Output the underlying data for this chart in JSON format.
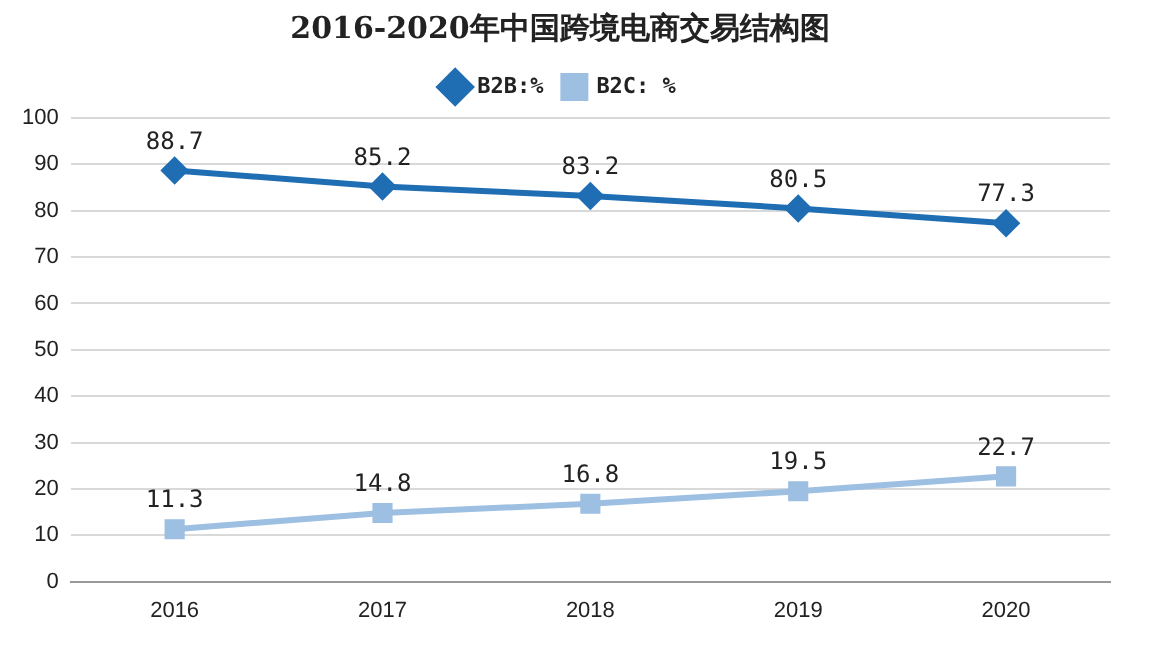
{
  "chart_data": {
    "type": "line",
    "title": "2016-2020年中国跨境电商交易结构图",
    "categories": [
      "2016",
      "2017",
      "2018",
      "2019",
      "2020"
    ],
    "series": [
      {
        "name": "B2B:%",
        "color": "#1f6db3",
        "marker": "diamond",
        "values": [
          88.7,
          85.2,
          83.2,
          80.5,
          77.3
        ]
      },
      {
        "name": "B2C: %",
        "color": "#9cbfe2",
        "marker": "square",
        "values": [
          11.3,
          14.8,
          16.8,
          19.5,
          22.7
        ]
      }
    ],
    "ylim": [
      0,
      100
    ],
    "yticks": [
      0,
      10,
      20,
      30,
      40,
      50,
      60,
      70,
      80,
      90,
      100
    ],
    "grid": "y",
    "legend": "top",
    "data_labels": true,
    "line_style": "solid"
  }
}
